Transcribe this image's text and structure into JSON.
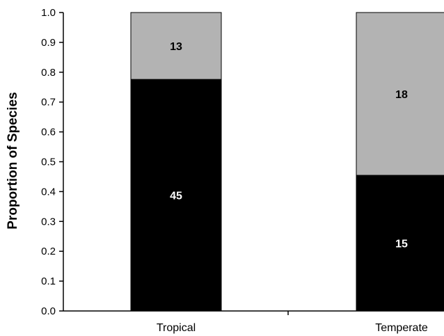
{
  "chart_data": {
    "type": "bar",
    "stacked": true,
    "normalized": true,
    "categories": [
      "Tropical",
      "Temperate"
    ],
    "series": [
      {
        "values": [
          45,
          15
        ],
        "color": "#000000",
        "label_color": "#ffffff"
      },
      {
        "values": [
          13,
          18
        ],
        "color": "#b3b3b3",
        "label_color": "#000000"
      }
    ],
    "ylabel": "Proportion of Species",
    "xlabel": "",
    "ylim": [
      0,
      1.0
    ],
    "yticks": [
      "0.0",
      "0.1",
      "0.2",
      "0.3",
      "0.4",
      "0.5",
      "0.6",
      "0.7",
      "0.8",
      "0.9",
      "1.0"
    ],
    "grid": false,
    "legend": "none"
  }
}
